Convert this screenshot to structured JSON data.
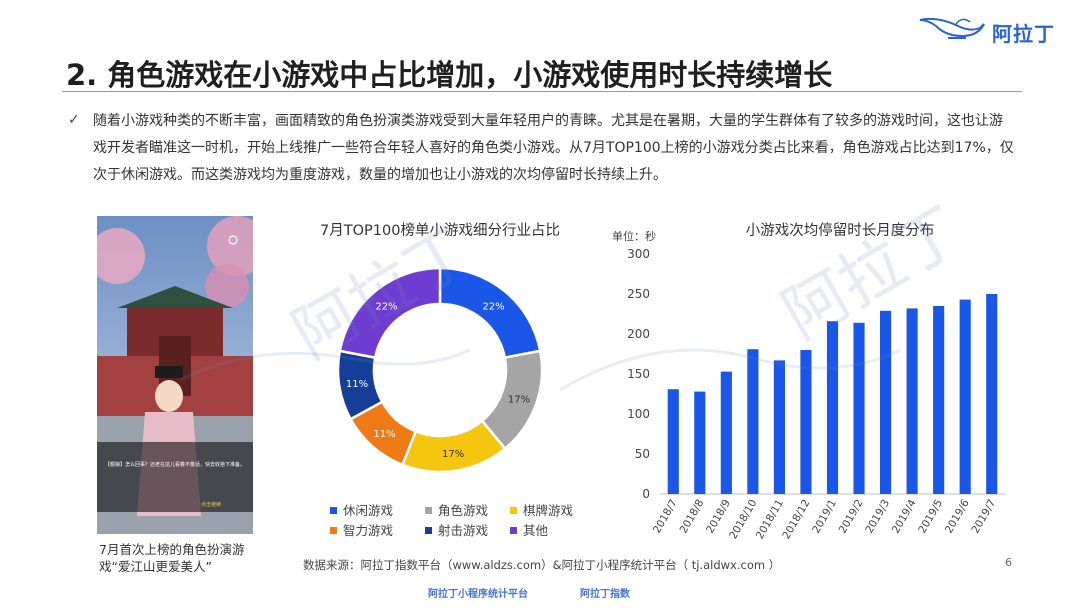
{
  "brand": {
    "logo_text": "阿拉丁",
    "accent_color": "#2a62d8"
  },
  "slide": {
    "title": "2. 角色游戏在小游戏中占比增加，小游戏使用时长持续增长",
    "bullet_icon": "checkmark-icon",
    "body": "随着小游戏种类的不断丰富，画面精致的角色扮演类游戏受到大量年轻用户的青睐。尤其是在暑期，大量的学生群体有了较多的游戏时间，这也让游戏开发者瞄准这一时机，开始上线推广一些符合年轻人喜好的角色类小游戏。从7月TOP100上榜的小游戏分类占比来看，角色游戏占比达到17%，仅次于休闲游戏。而这类游戏均为重度游戏，数量的增加也让小游戏的次均停留时长持续上升。",
    "caption": "7月首次上榜的角色扮演游戏“爱江山更爱美人”",
    "game_dialog_text": "【额娘】怎么回事？还老在这儿看着不像话，快去收拾下准备。",
    "game_dialog_button": "点击继续",
    "source": "数据来源：阿拉丁指数平台（www.aldzs.com）&阿拉丁小程序统计平台（ tj.aldwx.com ）",
    "page_number": "6",
    "footer_logos": [
      "阿拉丁小程序统计平台",
      "阿拉丁指数"
    ],
    "watermark_text": "阿拉丁"
  },
  "chart_data": [
    {
      "type": "pie",
      "variant": "donut",
      "title": "7月TOP100榜单小游戏细分行业占比",
      "legend_position": "bottom",
      "slices": [
        {
          "name": "休闲游戏",
          "value": 22,
          "label": "22%",
          "color": "#1a56e8"
        },
        {
          "name": "角色游戏",
          "value": 17,
          "label": "17%",
          "color": "#a5a5a5"
        },
        {
          "name": "棋牌游戏",
          "value": 17,
          "label": "17%",
          "color": "#f5c60f"
        },
        {
          "name": "智力游戏",
          "value": 11,
          "label": "11%",
          "color": "#f07b16"
        },
        {
          "name": "射击游戏",
          "value": 11,
          "label": "11%",
          "color": "#163e96"
        },
        {
          "name": "其他",
          "value": 22,
          "label": "22%",
          "color": "#6e3cd0"
        }
      ]
    },
    {
      "type": "bar",
      "title": "小游戏次均停留时长月度分布",
      "unit_label": "单位：秒",
      "categories": [
        "2018/7",
        "2018/8",
        "2018/9",
        "2018/10",
        "2018/11",
        "2018/12",
        "2019/1",
        "2019/2",
        "2019/3",
        "2019/4",
        "2019/5",
        "2019/6",
        "2019/7"
      ],
      "values": [
        131,
        128,
        153,
        181,
        167,
        180,
        216,
        214,
        229,
        232,
        235,
        243,
        250
      ],
      "ylim": [
        0,
        300
      ],
      "yticks": [
        0,
        50,
        100,
        150,
        200,
        250,
        300
      ],
      "grid": false,
      "bar_color": "#1a56e8"
    }
  ]
}
